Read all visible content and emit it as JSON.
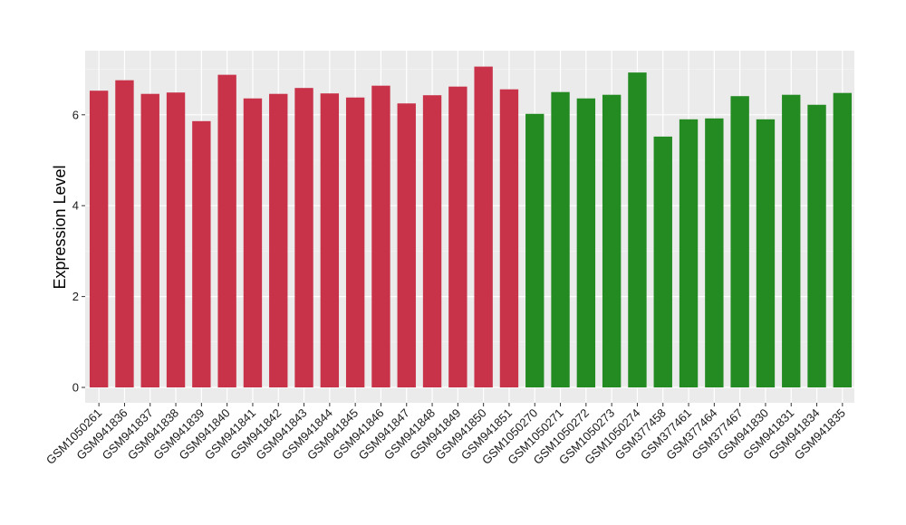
{
  "chart_data": {
    "type": "bar",
    "ylabel": "Expression Level",
    "xlabel": "",
    "ylim": [
      0,
      7.2
    ],
    "yticks": [
      0,
      2,
      4,
      6
    ],
    "grid": true,
    "panel_background": "#ebebeb",
    "grid_color": "#ffffff",
    "categories": [
      "GSM1050261",
      "GSM941836",
      "GSM941837",
      "GSM941838",
      "GSM941839",
      "GSM941840",
      "GSM941841",
      "GSM941842",
      "GSM941843",
      "GSM941844",
      "GSM941845",
      "GSM941846",
      "GSM941847",
      "GSM941848",
      "GSM941849",
      "GSM941850",
      "GSM941851",
      "GSM1050270",
      "GSM1050271",
      "GSM1050272",
      "GSM1050273",
      "GSM1050274",
      "GSM377458",
      "GSM377461",
      "GSM377464",
      "GSM377467",
      "GSM941830",
      "GSM941831",
      "GSM941834",
      "GSM941835"
    ],
    "values": [
      6.53,
      6.76,
      6.46,
      6.49,
      5.86,
      6.88,
      6.36,
      6.46,
      6.59,
      6.47,
      6.38,
      6.64,
      6.25,
      6.43,
      6.62,
      7.06,
      6.56,
      6.02,
      6.5,
      6.36,
      6.44,
      6.93,
      5.52,
      5.9,
      5.92,
      6.41,
      5.9,
      6.44,
      6.22,
      6.48
    ],
    "groups": [
      0,
      0,
      0,
      0,
      0,
      0,
      0,
      0,
      0,
      0,
      0,
      0,
      0,
      0,
      0,
      0,
      0,
      1,
      1,
      1,
      1,
      1,
      1,
      1,
      1,
      1,
      1,
      1,
      1,
      1
    ],
    "group_colors": [
      "#c8334a",
      "#238b22"
    ]
  }
}
